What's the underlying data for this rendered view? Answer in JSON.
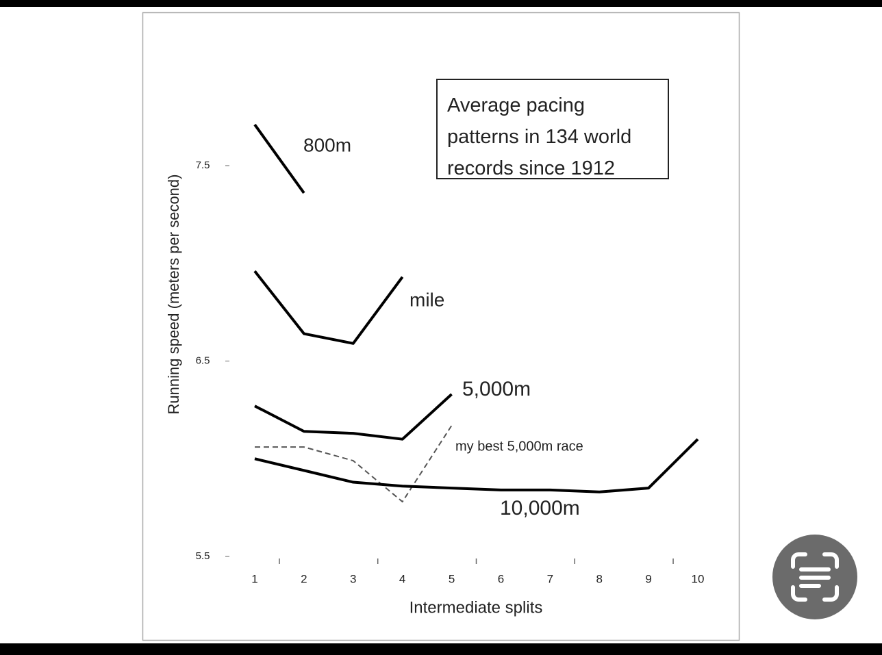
{
  "chart_data": {
    "type": "line",
    "title": "Average pacing patterns in 134 world records since 1912",
    "x_label": "Intermediate splits",
    "y_label": "Running speed (meters per second)",
    "x": [
      1,
      2,
      3,
      4,
      5,
      6,
      7,
      8,
      9,
      10
    ],
    "xlim": [
      1,
      10
    ],
    "xticks": [
      1,
      2,
      3,
      4,
      5,
      6,
      7,
      8,
      9,
      10
    ],
    "x_minor_ticks": [
      1.5,
      3.5,
      5.5,
      7.5,
      9.5
    ],
    "ylim": [
      5.5,
      7.5
    ],
    "yticks": [
      5.5,
      6.5,
      7.5
    ],
    "series": [
      {
        "name": "800m",
        "color": "#000000",
        "dashed": false,
        "values": [
          7.71,
          7.36,
          null,
          null,
          null,
          null,
          null,
          null,
          null,
          null
        ]
      },
      {
        "name": "mile",
        "color": "#000000",
        "dashed": false,
        "values": [
          6.96,
          6.64,
          6.59,
          6.93,
          null,
          null,
          null,
          null,
          null,
          null
        ]
      },
      {
        "name": "5,000m",
        "color": "#000000",
        "dashed": false,
        "values": [
          6.27,
          6.14,
          6.13,
          6.1,
          6.33,
          null,
          null,
          null,
          null,
          null
        ]
      },
      {
        "name": "my best 5,000m race",
        "color": "#555555",
        "dashed": true,
        "values": [
          6.06,
          6.06,
          5.99,
          5.78,
          6.17,
          null,
          null,
          null,
          null,
          null
        ]
      },
      {
        "name": "10,000m",
        "color": "#000000",
        "dashed": false,
        "values": [
          6.0,
          5.94,
          5.88,
          5.86,
          5.85,
          5.84,
          5.84,
          5.83,
          5.85,
          6.1
        ]
      }
    ]
  }
}
